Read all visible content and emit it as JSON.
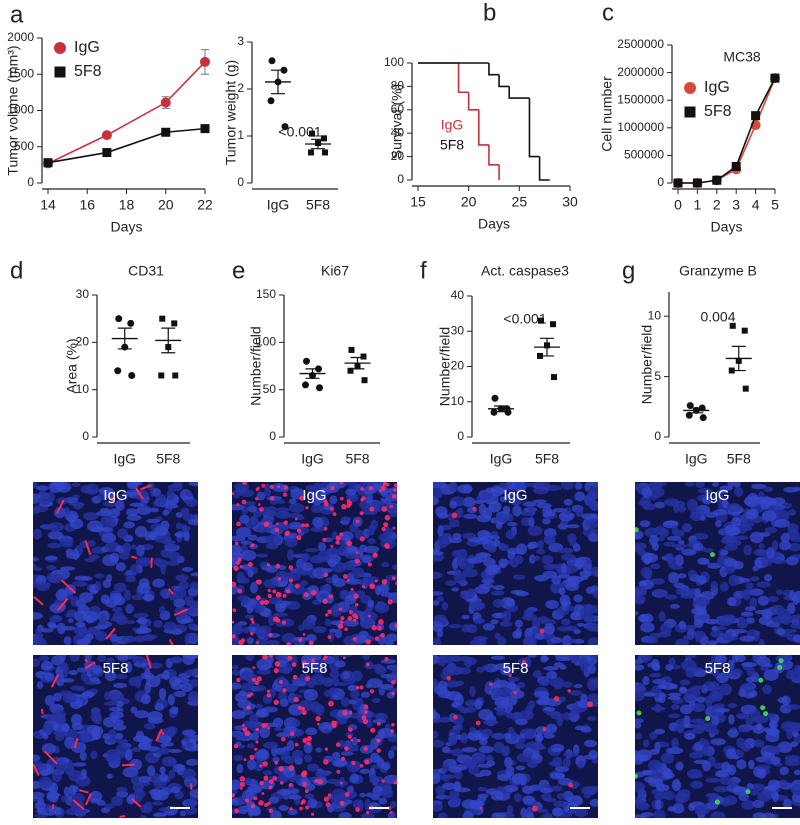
{
  "panel_letters": [
    "a",
    "b",
    "c",
    "d",
    "e",
    "f",
    "g"
  ],
  "chart_data": [
    {
      "type": "line",
      "xlabel": "Days",
      "ylabel": "Tumor volume (mm³)",
      "x": [
        14,
        17,
        20,
        22
      ],
      "xlim": [
        14,
        22
      ],
      "xticks": [
        14,
        16,
        18,
        20,
        22
      ],
      "ylim": [
        0,
        2000
      ],
      "yticks": [
        0,
        500,
        1000,
        1500,
        2000
      ],
      "legend": "upper left",
      "series": [
        {
          "name": "IgG",
          "color": "#c8313a",
          "marker": "circle",
          "values": [
            270,
            660,
            1110,
            1670
          ],
          "errors": [
            20,
            30,
            80,
            170
          ]
        },
        {
          "name": "5F8",
          "color": "#111111",
          "marker": "square",
          "values": [
            280,
            420,
            700,
            750
          ],
          "errors": [
            20,
            30,
            40,
            20
          ]
        }
      ]
    },
    {
      "type": "dot",
      "ylabel": "Tumor weight (g)",
      "categories": [
        "IgG",
        "5F8"
      ],
      "markers": [
        "circle",
        "square"
      ],
      "points": [
        [
          2.6,
          2.4,
          2.15,
          1.75,
          1.2
        ],
        [
          1.05,
          0.95,
          0.85,
          0.65,
          0.65
        ]
      ],
      "mean": [
        2.15,
        0.83
      ],
      "sem": [
        0.25,
        0.1
      ],
      "ylim": [
        0,
        3
      ],
      "yticks": [
        0,
        1,
        2,
        3
      ],
      "annotation": "<0.001"
    },
    {
      "type": "step",
      "xlabel": "Days",
      "ylabel": "Survival (%)",
      "xlim": [
        15,
        30
      ],
      "xticks": [
        15,
        20,
        25,
        30
      ],
      "ylim": [
        0,
        100
      ],
      "yticks": [
        0,
        20,
        40,
        60,
        80,
        100
      ],
      "legend": "lower left",
      "series": [
        {
          "name": "IgG",
          "color": "#c8313a",
          "x": [
            15,
            19,
            20,
            21,
            22,
            23
          ],
          "values": [
            100,
            75,
            60,
            30,
            13,
            0
          ]
        },
        {
          "name": "5F8",
          "color": "#111111",
          "x": [
            15,
            22,
            23,
            24,
            26,
            27,
            28
          ],
          "values": [
            100,
            90,
            80,
            70,
            20,
            0,
            0
          ]
        }
      ]
    },
    {
      "type": "line",
      "title": "MC38",
      "xlabel": "Days",
      "ylabel": "Cell number",
      "x": [
        0,
        1,
        2,
        3,
        4,
        5
      ],
      "xlim": [
        0,
        5
      ],
      "xticks": [
        0,
        1,
        2,
        3,
        4,
        5
      ],
      "ylim": [
        0,
        2500000
      ],
      "yticks": [
        0,
        500000,
        1000000,
        1500000,
        2000000,
        2500000
      ],
      "legend": "upper left",
      "series": [
        {
          "name": "IgG",
          "color": "#d9473f",
          "marker": "circle",
          "values": [
            0,
            0,
            50000,
            250000,
            1050000,
            1900000
          ]
        },
        {
          "name": "5F8",
          "color": "#111111",
          "marker": "square",
          "values": [
            0,
            0,
            50000,
            300000,
            1220000,
            1900000
          ]
        }
      ]
    },
    {
      "type": "dot",
      "title": "CD31",
      "ylabel": "Area (%)",
      "categories": [
        "IgG",
        "5F8"
      ],
      "markers": [
        "circle",
        "square"
      ],
      "points": [
        [
          25,
          24,
          19,
          14,
          13
        ],
        [
          25,
          24,
          19,
          13,
          13
        ]
      ],
      "mean": [
        20.8,
        20.4
      ],
      "sem": [
        2.2,
        2.6
      ],
      "ylim": [
        0,
        30
      ],
      "yticks": [
        0,
        10,
        20,
        30
      ]
    },
    {
      "type": "dot",
      "title": "Ki67",
      "ylabel": "Number/field",
      "categories": [
        "IgG",
        "5F8"
      ],
      "markers": [
        "circle",
        "square"
      ],
      "points": [
        [
          80,
          72,
          65,
          55,
          52
        ],
        [
          92,
          85,
          75,
          70,
          60
        ]
      ],
      "mean": [
        67,
        78
      ],
      "sem": [
        5,
        6
      ],
      "ylim": [
        0,
        150
      ],
      "yticks": [
        0,
        50,
        100,
        150
      ]
    },
    {
      "type": "dot",
      "title": "Act. caspase3",
      "ylabel": "Number/field",
      "categories": [
        "IgG",
        "5F8"
      ],
      "markers": [
        "circle",
        "square"
      ],
      "points": [
        [
          11,
          8,
          8,
          7,
          7
        ],
        [
          33,
          32,
          26,
          23,
          17
        ]
      ],
      "mean": [
        8,
        25.5
      ],
      "sem": [
        0.8,
        2.5
      ],
      "ylim": [
        0,
        40
      ],
      "yticks": [
        0,
        10,
        20,
        30,
        40
      ],
      "annotation": "<0.001"
    },
    {
      "type": "dot",
      "title": "Granzyme B",
      "ylabel": "Number/field",
      "categories": [
        "IgG",
        "5F8"
      ],
      "markers": [
        "circle",
        "square"
      ],
      "points": [
        [
          2.6,
          2.4,
          2.2,
          1.8,
          1.6
        ],
        [
          9.2,
          8.8,
          6.3,
          5.5,
          4
        ]
      ],
      "mean": [
        2.2,
        6.5
      ],
      "sem": [
        0.2,
        1
      ],
      "ylim": [
        0,
        12
      ],
      "yticks": [
        0,
        5,
        10
      ],
      "annotation": "0.004"
    }
  ],
  "images": [
    [
      "IgG",
      "5F8"
    ],
    [
      "IgG",
      "5F8"
    ],
    [
      "IgG",
      "5F8"
    ],
    [
      "IgG",
      "5F8"
    ]
  ]
}
